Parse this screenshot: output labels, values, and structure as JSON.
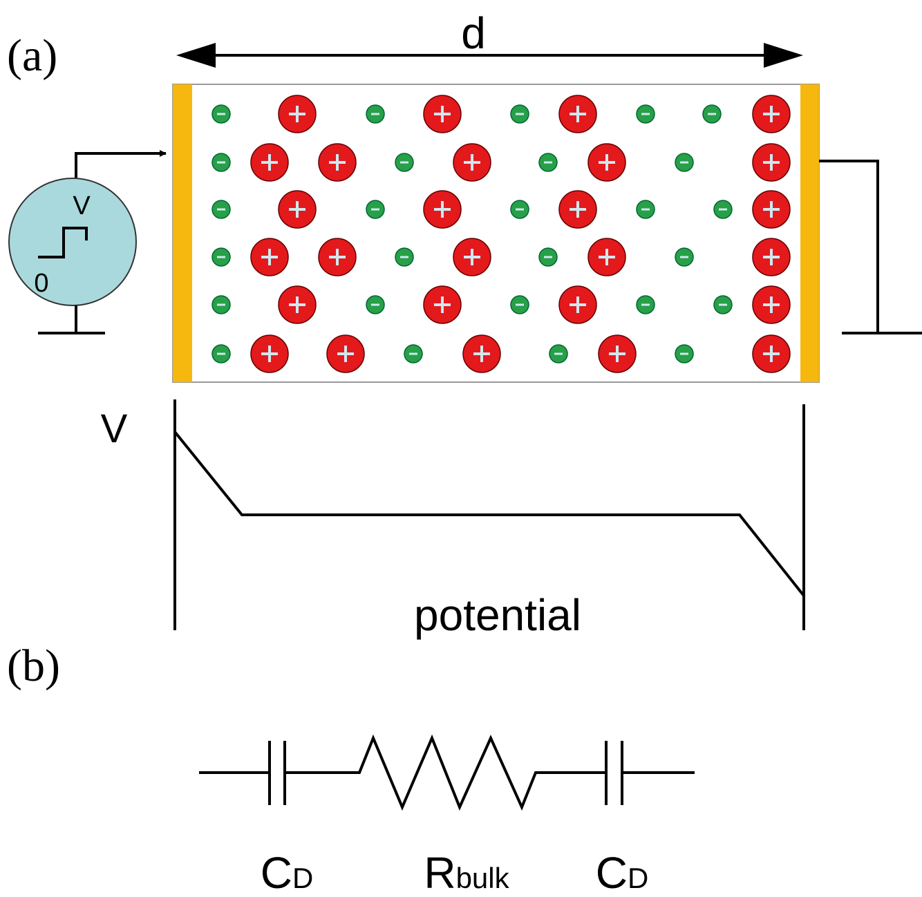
{
  "panel_a": {
    "label": "(a)",
    "width_label": "d",
    "source": {
      "high": "V",
      "low": "0"
    },
    "potential": {
      "level": "V",
      "caption": "potential"
    }
  },
  "panel_b": {
    "label": "(b)",
    "components": [
      {
        "main": "C",
        "sub": "D"
      },
      {
        "main": "R",
        "sub": "bulk"
      },
      {
        "main": "C",
        "sub": "D"
      }
    ]
  }
}
